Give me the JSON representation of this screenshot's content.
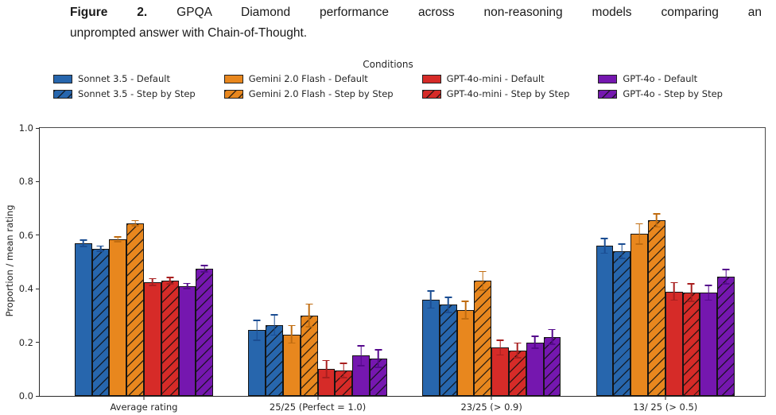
{
  "caption": {
    "figure_label": "Figure 2.",
    "line1": "GPQA Diamond performance across non-reasoning models comparing an",
    "line2": "unprompted answer with Chain-of-Thought."
  },
  "chart_data": {
    "type": "bar",
    "legend_title": "Conditions",
    "legend_position": "top",
    "ylabel": "Proportion / mean rating",
    "ylim": [
      0.0,
      1.0
    ],
    "yticks": [
      0.0,
      0.2,
      0.4,
      0.6,
      0.8,
      1.0
    ],
    "grid": false,
    "categories": [
      "Average rating",
      "25/25 (Perfect = 1.0)",
      "23/25 (> 0.9)",
      "13/ 25 (> 0.5)"
    ],
    "series": [
      {
        "name": "Sonnet 3.5 - Default",
        "color": "#2766ad",
        "err_color": "#1b4d92",
        "hatch": false,
        "values": [
          0.57,
          0.245,
          0.36,
          0.56
        ],
        "errors": [
          0.015,
          0.04,
          0.035,
          0.03
        ]
      },
      {
        "name": "Sonnet 3.5 - Step by Step",
        "color": "#2766ad",
        "err_color": "#1b4d92",
        "hatch": true,
        "values": [
          0.55,
          0.265,
          0.34,
          0.54
        ],
        "errors": [
          0.012,
          0.04,
          0.03,
          0.03
        ]
      },
      {
        "name": "Gemini 2.0 Flash - Default",
        "color": "#e8871e",
        "err_color": "#c06c10",
        "hatch": false,
        "values": [
          0.585,
          0.23,
          0.32,
          0.605
        ],
        "errors": [
          0.012,
          0.035,
          0.035,
          0.04
        ]
      },
      {
        "name": "Gemini 2.0 Flash - Step by Step",
        "color": "#e8871e",
        "err_color": "#c06c10",
        "hatch": true,
        "values": [
          0.645,
          0.3,
          0.43,
          0.655
        ],
        "errors": [
          0.012,
          0.045,
          0.037,
          0.027
        ]
      },
      {
        "name": "GPT-4o-mini - Default",
        "color": "#d62b28",
        "err_color": "#a81f1f",
        "hatch": false,
        "values": [
          0.425,
          0.1,
          0.18,
          0.39
        ],
        "errors": [
          0.015,
          0.035,
          0.03,
          0.035
        ]
      },
      {
        "name": "GPT-4o-mini - Step by Step",
        "color": "#d62b28",
        "err_color": "#a81f1f",
        "hatch": true,
        "values": [
          0.43,
          0.095,
          0.17,
          0.385
        ],
        "errors": [
          0.015,
          0.03,
          0.03,
          0.035
        ]
      },
      {
        "name": "GPT-4o - Default",
        "color": "#7517af",
        "err_color": "#55098c",
        "hatch": false,
        "values": [
          0.41,
          0.15,
          0.2,
          0.385
        ],
        "errors": [
          0.012,
          0.04,
          0.025,
          0.03
        ]
      },
      {
        "name": "GPT-4o - Step by Step",
        "color": "#7517af",
        "err_color": "#55098c",
        "hatch": true,
        "values": [
          0.475,
          0.14,
          0.22,
          0.445
        ],
        "errors": [
          0.015,
          0.035,
          0.03,
          0.03
        ]
      }
    ]
  }
}
